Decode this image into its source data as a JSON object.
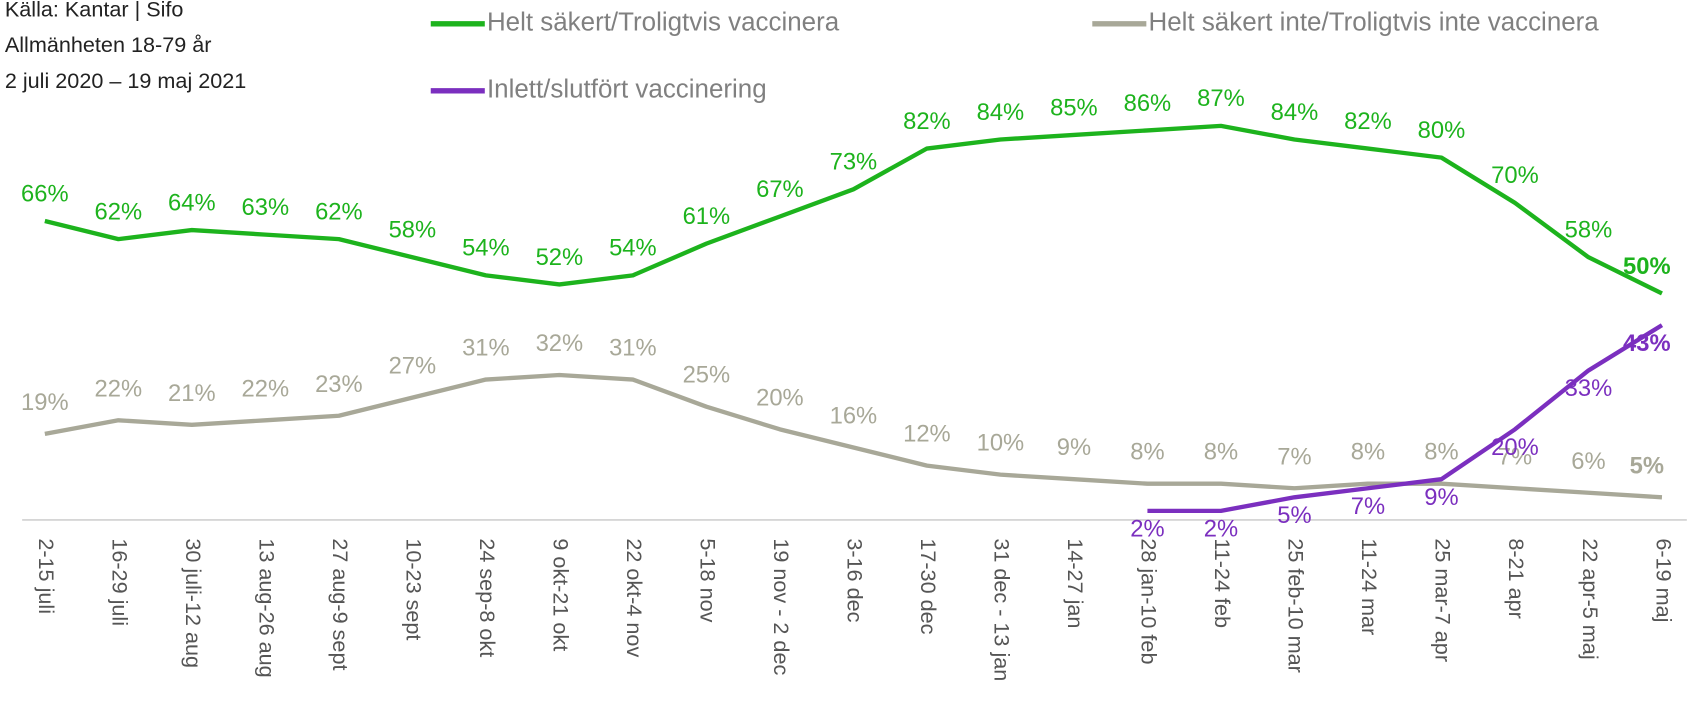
{
  "chart_data": {
    "type": "line",
    "notes": [
      "Källa: Kantar | Sifo",
      "Allmänheten 18-79 år",
      "2 juli 2020 – 19 maj 2021"
    ],
    "categories": [
      "2-15 juli",
      "16-29 juli",
      "30 juli-12 aug",
      "13 aug-26 aug",
      "27 aug-9 sept",
      "10-23 sept",
      "24 sep-8 okt",
      "9 okt-21 okt",
      "22 okt-4 nov",
      "5-18 nov",
      "19 nov - 2 dec",
      "3-16 dec",
      "17-30 dec",
      "31 dec - 13 jan",
      "14-27 jan",
      "28 jan-10 feb",
      "11-24 feb",
      "25 feb-10 mar",
      "11-24 mar",
      "25 mar-7 apr",
      "8-21 apr",
      "22 apr-5 maj",
      "6-19 maj"
    ],
    "series": [
      {
        "name": "Helt säkert/Troligtvis vaccinera",
        "color": "#1db31d",
        "values": [
          66,
          62,
          64,
          63,
          62,
          58,
          54,
          52,
          54,
          61,
          67,
          73,
          82,
          84,
          85,
          86,
          87,
          84,
          82,
          80,
          70,
          58,
          50
        ],
        "value_labels": [
          "66%",
          "62%",
          "64%",
          "63%",
          "62%",
          "58%",
          "54%",
          "52%",
          "54%",
          "61%",
          "67%",
          "73%",
          "82%",
          "84%",
          "85%",
          "86%",
          "87%",
          "84%",
          "82%",
          "80%",
          "70%",
          "58%",
          "50%"
        ]
      },
      {
        "name": "Helt säkert inte/Troligtvis inte vaccinera",
        "color": "#a8a898",
        "values": [
          19,
          22,
          21,
          22,
          23,
          27,
          31,
          32,
          31,
          25,
          20,
          16,
          12,
          10,
          9,
          8,
          8,
          7,
          8,
          8,
          7,
          6,
          5
        ],
        "value_labels": [
          "19%",
          "22%",
          "21%",
          "22%",
          "23%",
          "27%",
          "31%",
          "32%",
          "31%",
          "25%",
          "20%",
          "16%",
          "12%",
          "10%",
          "9%",
          "8%",
          "8%",
          "7%",
          "8%",
          "8%",
          "7%",
          "6%",
          "5%"
        ]
      },
      {
        "name": "Inlett/slutfört vaccinering",
        "color": "#7b2fbf",
        "values": [
          null,
          null,
          null,
          null,
          null,
          null,
          null,
          null,
          null,
          null,
          null,
          null,
          null,
          null,
          null,
          2,
          2,
          5,
          7,
          9,
          20,
          33,
          43
        ],
        "value_labels": [
          null,
          null,
          null,
          null,
          null,
          null,
          null,
          null,
          null,
          null,
          null,
          null,
          null,
          null,
          null,
          "2%",
          "2%",
          "5%",
          "7%",
          "9%",
          "20%",
          "33%",
          "43%"
        ]
      }
    ]
  }
}
